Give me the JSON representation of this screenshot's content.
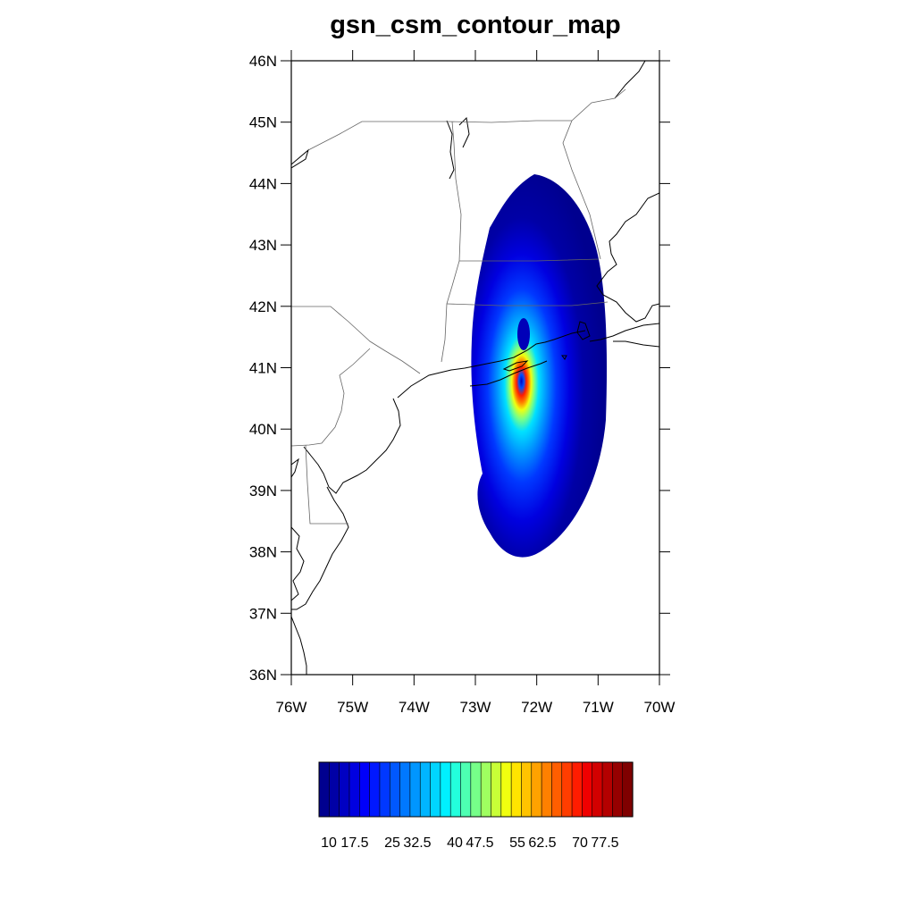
{
  "title": "gsn_csm_contour_map",
  "map": {
    "lon_range": [
      -76,
      -70
    ],
    "lat_range": [
      36,
      46
    ],
    "lat_ticks": [
      {
        "value": 46,
        "label": "46N"
      },
      {
        "value": 45,
        "label": "45N"
      },
      {
        "value": 44,
        "label": "44N"
      },
      {
        "value": 43,
        "label": "43N"
      },
      {
        "value": 42,
        "label": "42N"
      },
      {
        "value": 41,
        "label": "41N"
      },
      {
        "value": 40,
        "label": "40N"
      },
      {
        "value": 39,
        "label": "39N"
      },
      {
        "value": 38,
        "label": "38N"
      },
      {
        "value": 37,
        "label": "37N"
      },
      {
        "value": 36,
        "label": "36N"
      }
    ],
    "lon_ticks": [
      {
        "value": -76,
        "label": "76W"
      },
      {
        "value": -75,
        "label": "75W"
      },
      {
        "value": -74,
        "label": "74W"
      },
      {
        "value": -73,
        "label": "73W"
      },
      {
        "value": -72,
        "label": "72W"
      },
      {
        "value": -71,
        "label": "71W"
      },
      {
        "value": -70,
        "label": "70W"
      }
    ],
    "field_center": {
      "lon": -72.2,
      "lat": 41.3
    },
    "field_extent": {
      "lon_west": -73.15,
      "lon_east": -70.95,
      "lat_north": 44.15,
      "lat_south": 37.9
    }
  },
  "colorbar": {
    "colors": [
      "#00008f",
      "#0000a6",
      "#0000c3",
      "#0000e0",
      "#0000fa",
      "#0018ff",
      "#0038ff",
      "#0058ff",
      "#0078ff",
      "#0096ff",
      "#00b5ff",
      "#00d5ff",
      "#00f0ff",
      "#23ffdc",
      "#4dffb2",
      "#76ff89",
      "#9fff60",
      "#c8ff37",
      "#f0ff0f",
      "#ffe400",
      "#ffc300",
      "#ffa200",
      "#ff8000",
      "#ff5e00",
      "#ff3d00",
      "#ff1c00",
      "#f00000",
      "#d20000",
      "#b40000",
      "#960000",
      "#7f0000"
    ],
    "labels": [
      "10",
      "17.5",
      "25",
      "32.5",
      "40",
      "47.5",
      "55",
      "62.5",
      "70",
      "77.5"
    ]
  }
}
